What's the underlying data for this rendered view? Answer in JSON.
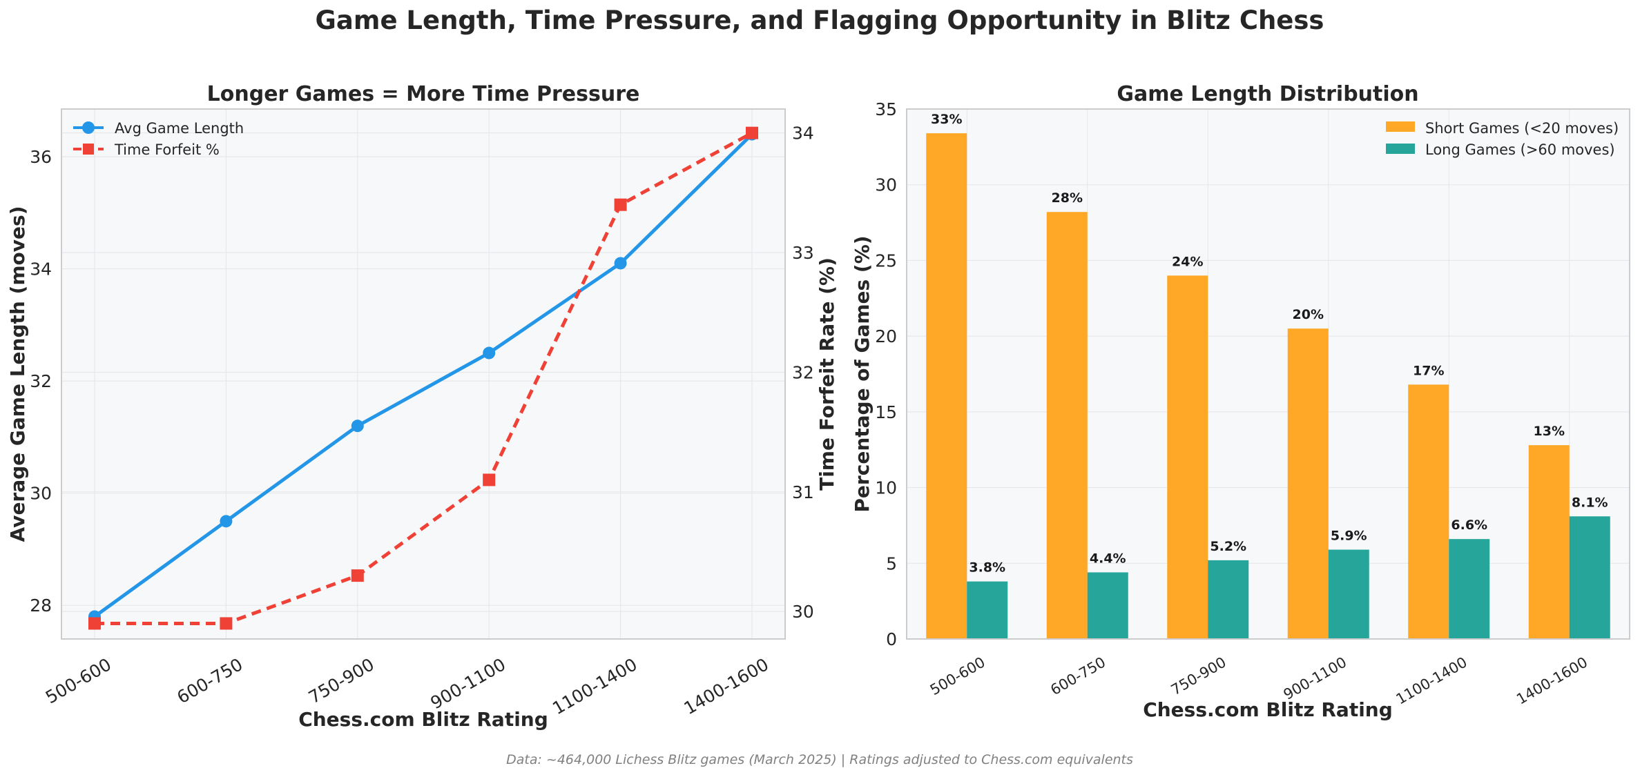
{
  "title": "Game Length, Time Pressure, and Flagging Opportunity in Blitz Chess",
  "caption": "Data: ~464,000 Lichess Blitz games (March 2025) | Ratings adjusted to Chess.com equivalents",
  "colors": {
    "length": "#2396e8",
    "forfeit": "#ef4136",
    "short": "#ffa726",
    "long": "#26a69a",
    "panel_bg": "#f7f8fa",
    "grid": "#e3e5e8",
    "spine": "#cccccc"
  },
  "chart_data": [
    {
      "type": "line",
      "title": "Longer Games = More Time Pressure",
      "xlabel": "Chess.com Blitz Rating",
      "categories": [
        "500-600",
        "600-750",
        "750-900",
        "900-1100",
        "1100-1400",
        "1400-1600"
      ],
      "y_left": {
        "label": "Average Game Length (moves)",
        "ylim": [
          27.4,
          36.85
        ],
        "ticks": [
          28,
          30,
          32,
          34,
          36
        ]
      },
      "y_right": {
        "label": "Time Forfeit Rate (%)",
        "ylim": [
          29.77,
          34.2
        ],
        "ticks": [
          30,
          31,
          32,
          33,
          34
        ]
      },
      "series": [
        {
          "name": "Avg Game Length",
          "axis": "left",
          "marker": "circle",
          "linestyle": "solid",
          "values": [
            27.8,
            29.5,
            31.2,
            32.5,
            34.1,
            36.4
          ]
        },
        {
          "name": "Time Forfeit %",
          "axis": "right",
          "marker": "square",
          "linestyle": "dashed",
          "values": [
            29.9,
            29.9,
            30.3,
            31.1,
            33.4,
            34.0
          ]
        }
      ],
      "grid": true,
      "legend": "upper-left"
    },
    {
      "type": "bar",
      "title": "Game Length Distribution",
      "xlabel": "Chess.com Blitz Rating",
      "ylabel": "Percentage of Games (%)",
      "ylim": [
        0,
        35
      ],
      "yticks": [
        0,
        5,
        10,
        15,
        20,
        25,
        30,
        35
      ],
      "categories": [
        "500-600",
        "600-750",
        "750-900",
        "900-1100",
        "1100-1400",
        "1400-1600"
      ],
      "series": [
        {
          "name": "Short Games (<20 moves)",
          "values": [
            33.4,
            28.2,
            24.0,
            20.5,
            16.8,
            12.8
          ],
          "labels": [
            "33%",
            "28%",
            "24%",
            "20%",
            "17%",
            "13%"
          ]
        },
        {
          "name": "Long Games (>60 moves)",
          "values": [
            3.8,
            4.4,
            5.2,
            5.9,
            6.6,
            8.1
          ],
          "labels": [
            "3.8%",
            "4.4%",
            "5.2%",
            "5.9%",
            "6.6%",
            "8.1%"
          ]
        }
      ],
      "grid": true,
      "legend": "upper-right"
    }
  ]
}
